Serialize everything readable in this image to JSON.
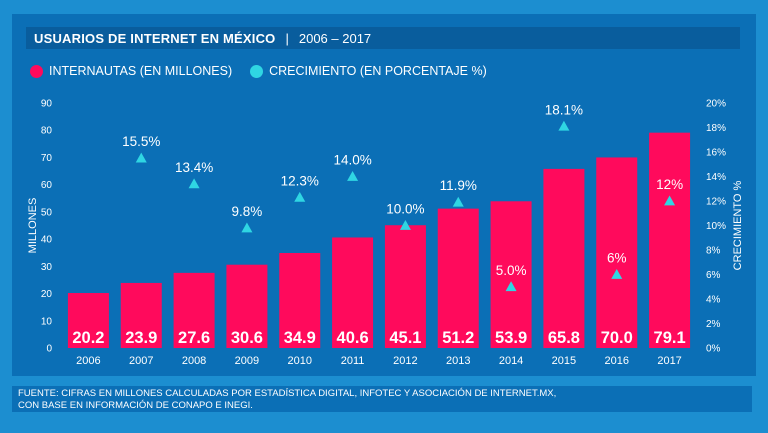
{
  "header": {
    "title": "USUARIOS DE INTERNET EN MÉXICO",
    "separator": "|",
    "range": "2006 – 2017"
  },
  "legend": {
    "bars_label": "INTERNAUTAS (EN MILLONES)",
    "growth_label": "CRECIMIENTO (EN PORCENTAJE %)"
  },
  "colors": {
    "bar": "#ff0a5c",
    "marker": "#2fd6e3",
    "background": "#1c8ed0",
    "panel": "#0b6fb6",
    "title_bar": "#095d9d"
  },
  "chart_data": {
    "type": "bar",
    "title": "USUARIOS DE INTERNET EN MÉXICO | 2006 – 2017",
    "categories": [
      "2006",
      "2007",
      "2008",
      "2009",
      "2010",
      "2011",
      "2012",
      "2013",
      "2014",
      "2015",
      "2016",
      "2017"
    ],
    "series": [
      {
        "name": "INTERNAUTAS (EN MILLONES)",
        "axis": "left",
        "values": [
          20.2,
          23.9,
          27.6,
          30.6,
          34.9,
          40.6,
          45.1,
          51.2,
          53.9,
          65.8,
          70.0,
          79.1
        ],
        "labels": [
          "20.2",
          "23.9",
          "27.6",
          "30.6",
          "34.9",
          "40.6",
          "45.1",
          "51.2",
          "53.9",
          "65.8",
          "70.0",
          "79.1"
        ]
      },
      {
        "name": "CRECIMIENTO (EN PORCENTAJE %)",
        "axis": "right",
        "type": "scatter",
        "values": [
          null,
          15.5,
          13.4,
          9.8,
          12.3,
          14.0,
          10.0,
          11.9,
          5.0,
          18.1,
          6.0,
          12.0
        ],
        "labels": [
          "",
          "15.5%",
          "13.4%",
          "9.8%",
          "12.3%",
          "14.0%",
          "10.0%",
          "11.9%",
          "5.0%",
          "18.1%",
          "6%",
          "12%"
        ]
      }
    ],
    "ylabel": "MILLONES",
    "ylim": [
      0,
      90
    ],
    "yticks": [
      "0",
      "10",
      "20",
      "30",
      "40",
      "50",
      "60",
      "70",
      "80",
      "90"
    ],
    "y2label": "CRECIMIENTO %",
    "y2lim": [
      0,
      20
    ],
    "y2ticks": [
      "0%",
      "2%",
      "4%",
      "6%",
      "8%",
      "10%",
      "12%",
      "14%",
      "16%",
      "18%",
      "20%"
    ],
    "grid": false
  },
  "footer": {
    "line1": "FUENTE: CIFRAS EN MILLONES CALCULADAS POR ESTADÍSTICA DIGITAL, INFOTEC Y ASOCIACIÓN DE INTERNET.MX,",
    "line2": "CON BASE EN INFORMACIÓN DE CONAPO E INEGI."
  }
}
